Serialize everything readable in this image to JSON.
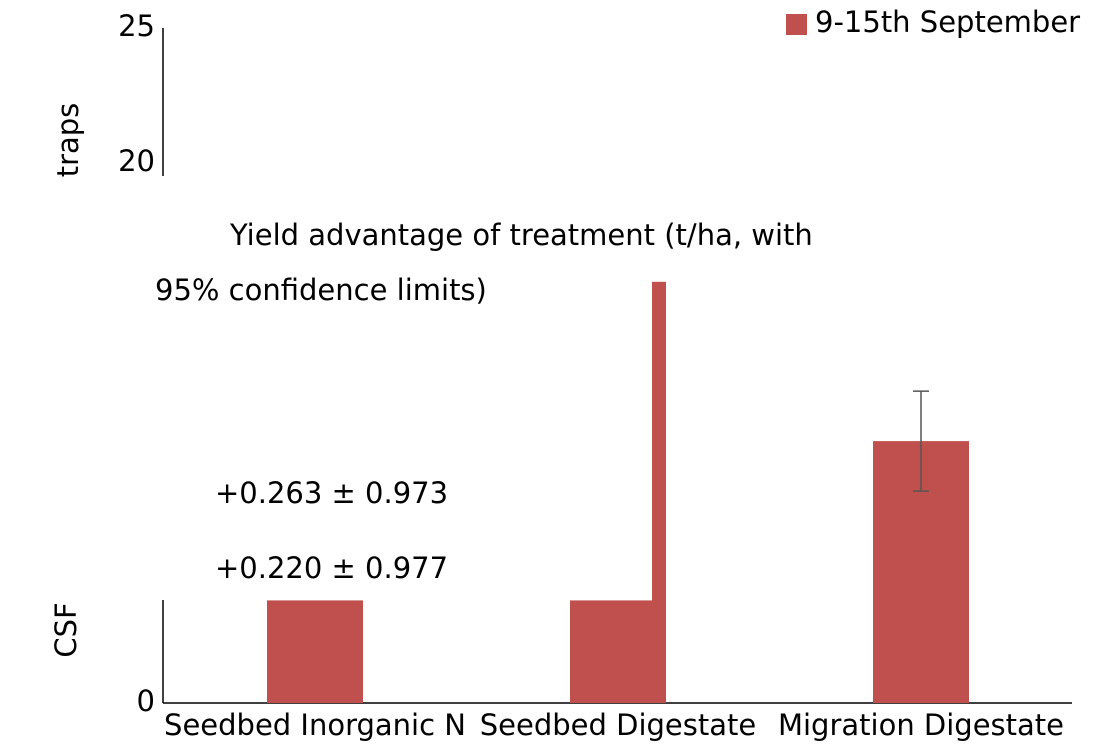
{
  "chart_data": {
    "type": "bar",
    "title_lines": [
      "Yield advantage of treatment (t/ha, with",
      "95% confidence limits)"
    ],
    "annotations": [
      "+0.263 ± 0.973",
      "+0.220 ± 0.977"
    ],
    "ylabels": [
      "traps",
      "CSF"
    ],
    "categories": [
      "Seedbed Inorganic N",
      "Seedbed Digestate",
      "Migration Digestate"
    ],
    "series": [
      {
        "name": "9-15th September",
        "color": "#c0504d",
        "values": [
          3.8,
          3.8,
          9.7
        ],
        "errors": [
          null,
          null,
          1.85
        ],
        "overlay_values": [
          null,
          15.6,
          null
        ]
      }
    ],
    "ylim": [
      0,
      25
    ],
    "yticks": [
      0,
      20,
      25
    ],
    "legend": "upper right"
  }
}
